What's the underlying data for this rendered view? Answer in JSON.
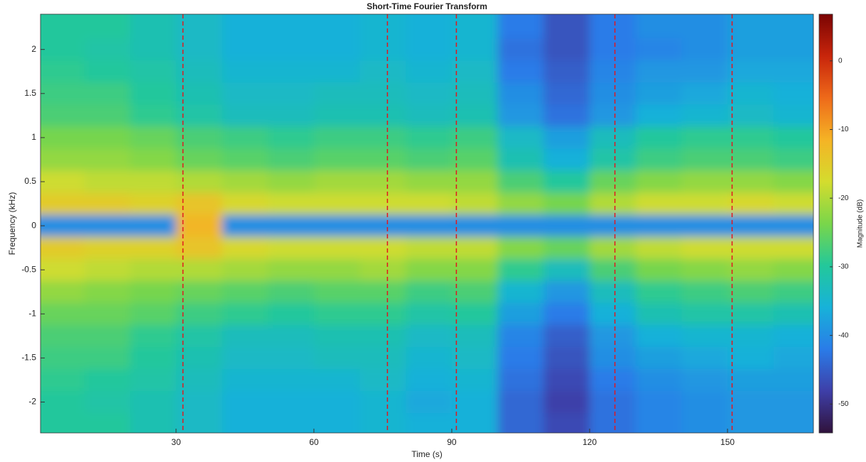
{
  "chart_data": {
    "type": "heatmap",
    "title": "Short-Time Fourier Transform",
    "x_label": "Time (s)",
    "y_label": "Frequency (kHz)",
    "colorbar_label": "Magnitude (dB)",
    "xlim": [
      0.5,
      168.7
    ],
    "ylim": [
      -2.35,
      2.4
    ],
    "xticks": [
      30,
      60,
      90,
      120,
      150
    ],
    "yticks": [
      -2,
      -1.5,
      -1,
      -0.5,
      0,
      0.5,
      1,
      1.5,
      2
    ],
    "clim": [
      -54.2,
      6.8
    ],
    "cticks": [
      -50,
      -40,
      -30,
      -20,
      -10,
      0
    ],
    "colormap": [
      "#30123b",
      "#3e3fa8",
      "#2a7ce8",
      "#17b2d9",
      "#23c89a",
      "#7ad64a",
      "#d4dc2e",
      "#f5b325",
      "#ee6a1a",
      "#c8250b",
      "#7a0403"
    ],
    "x": [
      5,
      15,
      25,
      35,
      45,
      55,
      65,
      75,
      85,
      95,
      105,
      115,
      125,
      135,
      145,
      155,
      165
    ],
    "y": [
      2.25,
      2,
      1.75,
      1.5,
      1.25,
      1,
      0.75,
      0.5,
      0.25,
      0,
      -0.25,
      -0.5,
      -0.75,
      -1,
      -1.25,
      -1.5,
      -1.75,
      -2,
      -2.25
    ],
    "values": [
      [
        -30,
        -30,
        -32,
        -34,
        -36,
        -36,
        -36,
        -35,
        -36,
        -35,
        -42,
        -46,
        -42,
        -40,
        -40,
        -38,
        -38
      ],
      [
        -30,
        -31,
        -32,
        -34,
        -36,
        -36,
        -36,
        -35,
        -36,
        -35,
        -43,
        -46,
        -42,
        -41,
        -40,
        -38,
        -38
      ],
      [
        -29,
        -30,
        -31,
        -33,
        -35,
        -35,
        -35,
        -34,
        -35,
        -34,
        -42,
        -45,
        -41,
        -39,
        -39,
        -37,
        -37
      ],
      [
        -28,
        -28,
        -30,
        -32,
        -34,
        -34,
        -33,
        -33,
        -34,
        -33,
        -40,
        -44,
        -40,
        -38,
        -37,
        -35,
        -36
      ],
      [
        -27,
        -27,
        -29,
        -31,
        -33,
        -33,
        -32,
        -32,
        -33,
        -32,
        -39,
        -43,
        -39,
        -36,
        -35,
        -34,
        -35
      ],
      [
        -24,
        -24,
        -25,
        -27,
        -28,
        -29,
        -28,
        -28,
        -29,
        -28,
        -34,
        -38,
        -33,
        -30,
        -29,
        -29,
        -30
      ],
      [
        -22,
        -22,
        -23,
        -25,
        -26,
        -27,
        -26,
        -26,
        -27,
        -26,
        -32,
        -36,
        -31,
        -28,
        -27,
        -27,
        -28
      ],
      [
        -18,
        -19,
        -19,
        -20,
        -21,
        -22,
        -21,
        -21,
        -22,
        -22,
        -27,
        -30,
        -25,
        -23,
        -22,
        -22,
        -23
      ],
      [
        -15,
        -15,
        -16,
        -14,
        -17,
        -18,
        -18,
        -18,
        -18,
        -19,
        -22,
        -24,
        -20,
        -18,
        -18,
        -17,
        -18
      ],
      [
        -40,
        -40,
        -40,
        -12,
        -40,
        -40,
        -40,
        -40,
        -40,
        -40,
        -40,
        -40,
        -40,
        -40,
        -40,
        -40,
        -40
      ],
      [
        -15,
        -16,
        -16,
        -14,
        -17,
        -18,
        -18,
        -18,
        -19,
        -19,
        -23,
        -25,
        -21,
        -19,
        -18,
        -18,
        -18
      ],
      [
        -18,
        -19,
        -20,
        -20,
        -21,
        -22,
        -22,
        -21,
        -23,
        -23,
        -29,
        -33,
        -27,
        -24,
        -23,
        -22,
        -23
      ],
      [
        -22,
        -23,
        -24,
        -25,
        -26,
        -27,
        -26,
        -26,
        -28,
        -27,
        -35,
        -39,
        -33,
        -29,
        -28,
        -27,
        -28
      ],
      [
        -25,
        -25,
        -26,
        -28,
        -29,
        -30,
        -29,
        -29,
        -31,
        -30,
        -38,
        -42,
        -36,
        -32,
        -31,
        -31,
        -32
      ],
      [
        -27,
        -27,
        -29,
        -31,
        -33,
        -33,
        -32,
        -32,
        -34,
        -33,
        -41,
        -45,
        -39,
        -36,
        -35,
        -35,
        -36
      ],
      [
        -28,
        -28,
        -30,
        -32,
        -34,
        -34,
        -33,
        -33,
        -35,
        -34,
        -42,
        -46,
        -40,
        -38,
        -37,
        -36,
        -37
      ],
      [
        -29,
        -30,
        -31,
        -33,
        -35,
        -35,
        -35,
        -34,
        -36,
        -35,
        -43,
        -47,
        -42,
        -40,
        -39,
        -38,
        -38
      ],
      [
        -30,
        -31,
        -32,
        -34,
        -36,
        -36,
        -36,
        -35,
        -37,
        -36,
        -44,
        -48,
        -43,
        -41,
        -40,
        -39,
        -39
      ],
      [
        -30,
        -30,
        -32,
        -34,
        -36,
        -36,
        -36,
        -35,
        -36,
        -36,
        -44,
        -47,
        -43,
        -41,
        -40,
        -39,
        -39
      ]
    ],
    "markers": {
      "color": "#e3161e",
      "x": [
        31.5,
        76,
        91,
        125.5,
        151
      ]
    }
  }
}
